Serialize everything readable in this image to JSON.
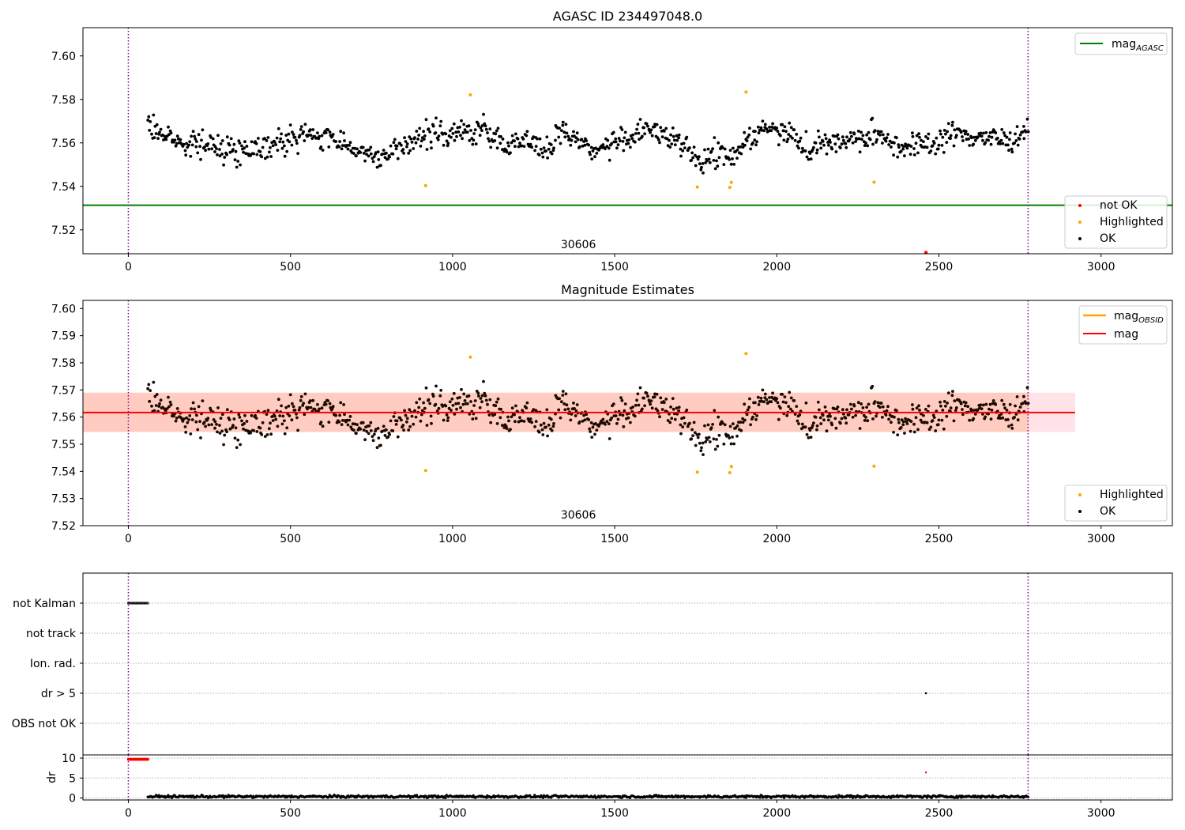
{
  "chart_data": [
    {
      "type": "scatter",
      "title": "AGASC ID 234497048.0",
      "xlabel": "",
      "ylabel": "",
      "xlim": [
        -140,
        3220
      ],
      "ylim": [
        7.509,
        7.613
      ],
      "xticks": [
        0,
        500,
        1000,
        1500,
        2000,
        2500,
        3000
      ],
      "yticks": [
        7.52,
        7.54,
        7.56,
        7.58,
        7.6
      ],
      "ytick_labels": [
        "7.52",
        "7.54",
        "7.56",
        "7.58",
        "7.60"
      ],
      "vlines": [
        0,
        2775
      ],
      "hlines": [
        {
          "name": "mag_AGASC",
          "y": 7.5313,
          "color": "#008000"
        }
      ],
      "annotation": {
        "text": "30606",
        "x": 1388,
        "y": 7.5115
      },
      "ok_trend": [
        [
          60,
          7.568
        ],
        [
          150,
          7.561
        ],
        [
          250,
          7.559
        ],
        [
          340,
          7.556
        ],
        [
          400,
          7.558
        ],
        [
          500,
          7.561
        ],
        [
          560,
          7.564
        ],
        [
          660,
          7.561
        ],
        [
          760,
          7.553
        ],
        [
          800,
          7.554
        ],
        [
          880,
          7.561
        ],
        [
          940,
          7.565
        ],
        [
          1040,
          7.565
        ],
        [
          1090,
          7.566
        ],
        [
          1160,
          7.559
        ],
        [
          1220,
          7.562
        ],
        [
          1300,
          7.556
        ],
        [
          1340,
          7.566
        ],
        [
          1440,
          7.556
        ],
        [
          1500,
          7.56
        ],
        [
          1580,
          7.565
        ],
        [
          1660,
          7.563
        ],
        [
          1720,
          7.56
        ],
        [
          1760,
          7.549
        ],
        [
          1800,
          7.556
        ],
        [
          1860,
          7.553
        ],
        [
          1900,
          7.561
        ],
        [
          1960,
          7.566
        ],
        [
          2030,
          7.566
        ],
        [
          2100,
          7.557
        ],
        [
          2140,
          7.56
        ],
        [
          2240,
          7.561
        ],
        [
          2320,
          7.564
        ],
        [
          2380,
          7.558
        ],
        [
          2430,
          7.559
        ],
        [
          2480,
          7.56
        ],
        [
          2540,
          7.564
        ],
        [
          2620,
          7.563
        ],
        [
          2700,
          7.561
        ],
        [
          2775,
          7.566
        ]
      ],
      "ok_count": 950,
      "ok_spread": 0.0065,
      "highlighted": [
        [
          917,
          7.5403
        ],
        [
          1055,
          7.5821
        ],
        [
          1755,
          7.5397
        ],
        [
          1855,
          7.5395
        ],
        [
          1860,
          7.5418
        ],
        [
          1905,
          7.5834
        ],
        [
          2300,
          7.5419
        ]
      ],
      "not_ok": [
        [
          2460,
          7.5095
        ]
      ],
      "legend": {
        "position": "upper right",
        "entries": [
          "mag_AGASC"
        ]
      },
      "legend2": {
        "position": "lower right",
        "entries": [
          "not OK",
          "Highlighted",
          "OK"
        ]
      }
    },
    {
      "type": "scatter",
      "title": "Magnitude Estimates",
      "xlabel": "",
      "ylabel": "",
      "xlim": [
        -140,
        3220
      ],
      "ylim": [
        7.52,
        7.603
      ],
      "xticks": [
        0,
        500,
        1000,
        1500,
        2000,
        2500,
        3000
      ],
      "yticks": [
        7.52,
        7.53,
        7.54,
        7.55,
        7.56,
        7.57,
        7.58,
        7.59,
        7.6
      ],
      "ytick_labels": [
        "7.52",
        "7.53",
        "7.54",
        "7.55",
        "7.56",
        "7.57",
        "7.58",
        "7.59",
        "7.60"
      ],
      "vlines": [
        0,
        2775
      ],
      "hlines": [
        {
          "name": "mag",
          "y": 7.5617,
          "color": "#ff0000",
          "x_range": [
            -140,
            2920
          ]
        }
      ],
      "band_mag": [
        7.5545,
        7.569
      ],
      "band_obsid": [
        7.5545,
        7.569
      ],
      "band_mag_xrange": [
        -140,
        2920
      ],
      "band_obsid_xrange": [
        -140,
        2775
      ],
      "annotation": {
        "text": "30606",
        "x": 1388,
        "y": 7.5226
      },
      "same_points_as_panel": 1,
      "legend": {
        "position": "upper right",
        "entries": [
          "mag_OBSID",
          "mag"
        ]
      },
      "legend2": {
        "position": "lower right",
        "entries": [
          "Highlighted",
          "OK"
        ]
      }
    },
    {
      "type": "scatter",
      "xlim": [
        -140,
        3220
      ],
      "xticks": [
        0,
        500,
        1000,
        1500,
        2000,
        2500,
        3000
      ],
      "categories": [
        "not Kalman",
        "not track",
        "Ion. rad.",
        "dr > 5",
        "OBS not OK"
      ],
      "vlines": [
        0,
        2775
      ],
      "flags": {
        "not Kalman": {
          "x_range": [
            0,
            60
          ]
        },
        "dr > 5": {
          "points": [
            2460
          ]
        }
      }
    },
    {
      "type": "scatter",
      "ylabel": "dr",
      "xlim": [
        -140,
        3220
      ],
      "ylim": [
        -0.5,
        10.8
      ],
      "xticks": [
        0,
        500,
        1000,
        1500,
        2000,
        2500,
        3000
      ],
      "yticks": [
        0,
        5,
        10
      ],
      "ytick_labels": [
        "0",
        "5",
        "10"
      ],
      "vlines": [
        0,
        2775
      ],
      "red_points": {
        "x_range": [
          0,
          60
        ],
        "y": 9.7,
        "extra": [
          [
            2460,
            6.4
          ]
        ]
      },
      "ok_dr": {
        "x_range": [
          60,
          2775
        ],
        "mean": 0.35,
        "max": 1.2
      }
    }
  ],
  "legend_labels": {
    "agasc": {
      "main": "mag",
      "sub": "AGASC"
    },
    "obsid": {
      "main": "mag",
      "sub": "OBSID"
    },
    "mag": "mag",
    "not_ok": "not OK",
    "highlighted": "Highlighted",
    "ok": "OK"
  },
  "colors": {
    "ok": "#000000",
    "highlighted": "#ffa500",
    "not_ok": "#ff0000",
    "mag_agasc": "#008000",
    "mag_obsid": "#ffa500",
    "mag": "#ff0000",
    "vline": "#800080",
    "band_mag": "#ffc0cb",
    "band_obsid": "#ffa07a",
    "grid": "#b0b0b0"
  }
}
